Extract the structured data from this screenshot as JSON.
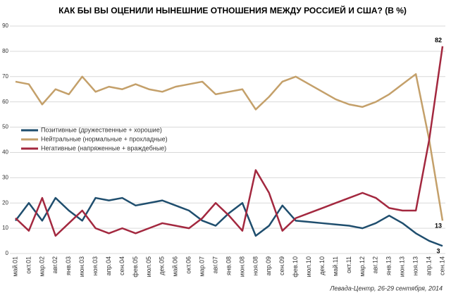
{
  "chart_data": {
    "type": "line",
    "title": "КАК БЫ ВЫ ОЦЕНИЛИ  НЫНЕШНИЕ  ОТНОШЕНИЯ  МЕЖДУ РОССИЕЙ И США? (В %)",
    "note": "Левада-Центр, 26-29 сентября, 2014",
    "categories": [
      "май.01",
      "окт.01",
      "мар.02",
      "авг.02",
      "янв.03",
      "июн.03",
      "ноя.03",
      "апр.04",
      "сен.04",
      "фев.05",
      "июл.05",
      "дек.05",
      "май.06",
      "окт.06",
      "мар.07",
      "авг.07",
      "янв.08",
      "июн.08",
      "ноя.08",
      "апр.09",
      "сен.09",
      "фев.10",
      "июл.10",
      "дек.10",
      "май.11",
      "окт.11",
      "мар.12",
      "авг.12",
      "янв.13",
      "июн.13",
      "ноя.13",
      "апр.14",
      "сен.14"
    ],
    "series": [
      {
        "name": "Позитивные (дружественные + хорошие)",
        "color": "#1f4e6e",
        "values": [
          13,
          20,
          13,
          22,
          17,
          13,
          22,
          21,
          22,
          19,
          20,
          21,
          19,
          17,
          13,
          11,
          16,
          20,
          7,
          11,
          19,
          13,
          12.5,
          12,
          11.5,
          11,
          10,
          12,
          15,
          12,
          8,
          5,
          3
        ],
        "value_labels": [
          null,
          null,
          null,
          null,
          null,
          null,
          null,
          null,
          null,
          null,
          null,
          null,
          null,
          null,
          null,
          null,
          null,
          null,
          null,
          null,
          null,
          null,
          null,
          null,
          null,
          null,
          null,
          null,
          null,
          null,
          null,
          null,
          "3"
        ]
      },
      {
        "name": "Нейтральные (нормальные + прохладные)",
        "color": "#c4a06a",
        "values": [
          68,
          67,
          59,
          65,
          63,
          70,
          64,
          66,
          65,
          67,
          65,
          64,
          66,
          67,
          68,
          63,
          64,
          65,
          57,
          62,
          68,
          70,
          67,
          64,
          61,
          59,
          58,
          60,
          63,
          67,
          71,
          45,
          13
        ],
        "value_labels": [
          null,
          null,
          null,
          null,
          null,
          null,
          null,
          null,
          null,
          null,
          null,
          null,
          null,
          null,
          null,
          null,
          null,
          null,
          null,
          null,
          null,
          null,
          null,
          null,
          null,
          null,
          null,
          null,
          null,
          null,
          null,
          null,
          "13"
        ]
      },
      {
        "name": "Негативные  (напряженные + враждебные)",
        "color": "#a3283f",
        "values": [
          14,
          9,
          22,
          7,
          12,
          17,
          10,
          8,
          10,
          8,
          10,
          12,
          11,
          10,
          14,
          20,
          15,
          9,
          33,
          24,
          9,
          14,
          16,
          18,
          20,
          22,
          24,
          22,
          18,
          17,
          17,
          45,
          82
        ],
        "value_labels": [
          null,
          null,
          null,
          null,
          null,
          null,
          null,
          null,
          null,
          null,
          null,
          null,
          null,
          null,
          null,
          null,
          null,
          null,
          null,
          null,
          null,
          null,
          null,
          null,
          null,
          null,
          null,
          null,
          null,
          null,
          null,
          null,
          "82"
        ]
      }
    ],
    "ylim": [
      0,
      90
    ],
    "yticks": [
      0,
      10,
      20,
      30,
      40,
      50,
      60,
      70,
      80,
      90
    ],
    "grid": true
  }
}
